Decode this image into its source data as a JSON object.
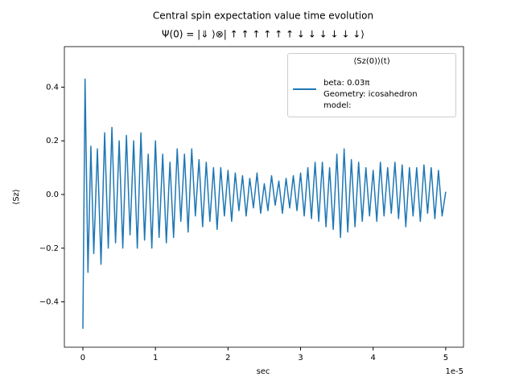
{
  "chart_data": {
    "type": "line",
    "title": "Central spin expectation value time evolution",
    "subtitle": "Ψ(0) = |⇓ ⟩⊗| ↑ ↑ ↑ ↑ ↑ ↑ ↓ ↓ ↓ ↓ ↓ ↓⟩",
    "xlabel": "sec",
    "ylabel": "⟨Sz⟩",
    "x_offset_label": "1e-5",
    "legend_title": "⟨Sz(0)⟩(t)",
    "legend_loc": "upper right",
    "xlim": [
      -0.255,
      5.245
    ],
    "xticks": [
      0,
      1,
      2,
      3,
      4,
      5
    ],
    "ylim": [
      -0.569,
      0.551
    ],
    "yticks": [
      {
        "value": -0.4,
        "label": "−0.4"
      },
      {
        "value": -0.2,
        "label": "−0.2"
      },
      {
        "value": 0,
        "label": "0.0"
      },
      0.2,
      0.4
    ],
    "x": [
      0,
      0.03,
      0.07,
      0.11,
      0.15,
      0.2,
      0.25,
      0.3,
      0.35,
      0.4,
      0.45,
      0.5,
      0.55,
      0.6,
      0.65,
      0.7,
      0.75,
      0.8,
      0.85,
      0.9,
      0.95,
      1.0,
      1.05,
      1.1,
      1.15,
      1.2,
      1.25,
      1.3,
      1.35,
      1.4,
      1.45,
      1.5,
      1.55,
      1.6,
      1.65,
      1.7,
      1.75,
      1.8,
      1.85,
      1.9,
      1.95,
      2.0,
      2.05,
      2.1,
      2.15,
      2.2,
      2.25,
      2.3,
      2.35,
      2.4,
      2.45,
      2.5,
      2.55,
      2.6,
      2.65,
      2.7,
      2.75,
      2.8,
      2.85,
      2.9,
      2.95,
      3.0,
      3.05,
      3.1,
      3.15,
      3.2,
      3.25,
      3.3,
      3.35,
      3.4,
      3.45,
      3.5,
      3.55,
      3.6,
      3.65,
      3.7,
      3.75,
      3.8,
      3.85,
      3.9,
      3.95,
      4.0,
      4.05,
      4.1,
      4.15,
      4.2,
      4.25,
      4.3,
      4.35,
      4.4,
      4.45,
      4.5,
      4.55,
      4.6,
      4.65,
      4.7,
      4.75,
      4.8,
      4.85,
      4.9,
      4.95,
      5.0
    ],
    "series": [
      {
        "name": "beta: 0.03π\nGeometry: icosahedron\nmodel:",
        "color": "#1f77b4",
        "values": [
          -0.5,
          0.43,
          -0.29,
          0.18,
          -0.22,
          0.17,
          -0.26,
          0.23,
          -0.2,
          0.25,
          -0.18,
          0.2,
          -0.2,
          0.22,
          -0.15,
          0.2,
          -0.2,
          0.23,
          -0.17,
          0.15,
          -0.2,
          0.2,
          -0.16,
          0.15,
          -0.18,
          0.12,
          -0.16,
          0.17,
          -0.1,
          0.15,
          -0.14,
          0.17,
          -0.08,
          0.13,
          -0.12,
          0.12,
          -0.1,
          0.1,
          -0.13,
          0.1,
          -0.08,
          0.09,
          -0.1,
          0.08,
          -0.06,
          0.07,
          -0.08,
          0.06,
          -0.05,
          0.08,
          -0.07,
          0.04,
          -0.06,
          0.07,
          -0.04,
          0.05,
          -0.07,
          0.06,
          -0.05,
          0.07,
          -0.06,
          0.08,
          -0.08,
          0.1,
          -0.09,
          0.12,
          -0.1,
          0.12,
          -0.12,
          0.1,
          -0.13,
          0.15,
          -0.16,
          0.17,
          -0.14,
          0.13,
          -0.12,
          0.12,
          -0.1,
          0.1,
          -0.08,
          0.09,
          -0.1,
          0.12,
          -0.08,
          0.1,
          -0.07,
          0.12,
          -0.09,
          0.11,
          -0.12,
          0.1,
          -0.08,
          0.1,
          -0.1,
          0.11,
          -0.07,
          0.1,
          -0.09,
          0.09,
          -0.08,
          0.01
        ]
      }
    ]
  }
}
